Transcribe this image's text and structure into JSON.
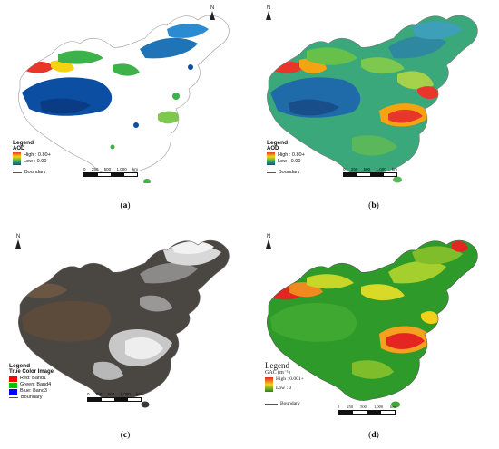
{
  "panels": {
    "a": {
      "caption_open": "(",
      "caption_letter": "a",
      "caption_close": ")",
      "north": "N",
      "legend_title": "Legend",
      "legend_sub": "AOD",
      "high": "High : 0.80+",
      "low": "Low : 0.00",
      "boundary": "Boundary",
      "scale": [
        "0",
        "250",
        "500",
        "1,000",
        "km"
      ],
      "colors": {
        "high": "#e8372a",
        "mid": "#f5d311",
        "green": "#3db24a",
        "low": "#0b4ea2"
      }
    },
    "b": {
      "caption_open": "(",
      "caption_letter": "b",
      "caption_close": ")",
      "north": "N",
      "legend_title": "Legend",
      "legend_sub": "AOD",
      "high": "High : 0.80+",
      "low": "Low : 0.00",
      "boundary": "Boundary",
      "scale": [
        "0",
        "250",
        "500",
        "1,000",
        "km"
      ]
    },
    "c": {
      "caption_open": "(",
      "caption_letter": "c",
      "caption_close": ")",
      "north": "N",
      "legend_title": "Legend",
      "legend_sub": "True Color Image",
      "bands": [
        {
          "label": "Red:  Band1",
          "color": "#ff0000"
        },
        {
          "label": "Green: Band4",
          "color": "#00c800"
        },
        {
          "label": "Blue:  Band3",
          "color": "#0000ff"
        }
      ],
      "boundary": "Boundary",
      "scale": [
        "0",
        "250",
        "500",
        "1,000",
        "km"
      ]
    },
    "d": {
      "caption_open": "(",
      "caption_letter": "d",
      "caption_close": ")",
      "north": "N",
      "legend_title": "Legend",
      "legend_sub": "GAC (m⁻¹)",
      "high": "High : 0.001+",
      "low": "Low : 0",
      "boundary": "Boundary",
      "scale": [
        "0",
        "250",
        "500",
        "1,000",
        "km"
      ]
    }
  }
}
